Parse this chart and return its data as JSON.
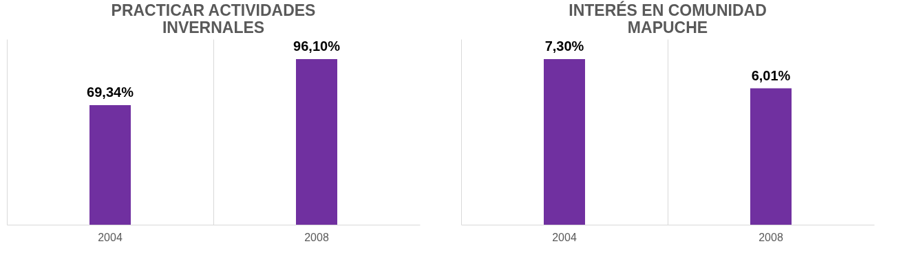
{
  "chart_data": [
    {
      "type": "bar",
      "title": "PRACTICAR ACTIVIDADES INVERNALES",
      "categories": [
        "2004",
        "2008"
      ],
      "values": [
        69.34,
        96.1
      ],
      "value_labels": [
        "69,34%",
        "96,10%"
      ],
      "color": "#7030a0",
      "grid": "x"
    },
    {
      "type": "bar",
      "title": "INTERÉS EN COMUNIDAD MAPUCHE",
      "categories": [
        "2004",
        "2008"
      ],
      "values": [
        7.3,
        6.01
      ],
      "value_labels": [
        "7,30%",
        "6,01%"
      ],
      "color": "#7030a0",
      "grid": "x"
    }
  ]
}
